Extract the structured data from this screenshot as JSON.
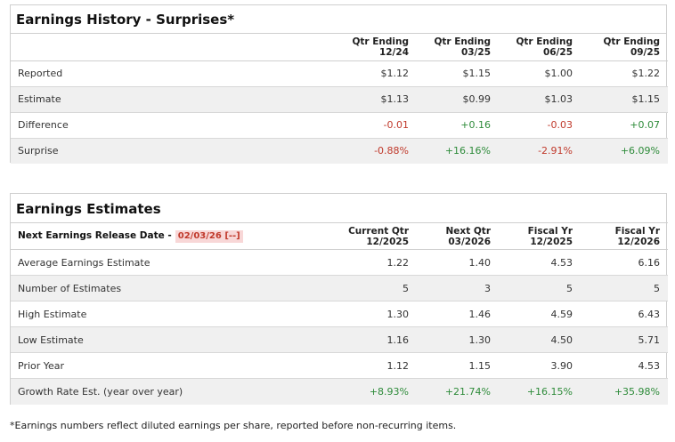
{
  "history": {
    "title": "Earnings History - Surprises*",
    "columns": [
      {
        "line1": "Qtr Ending",
        "line2": "12/24"
      },
      {
        "line1": "Qtr Ending",
        "line2": "03/25"
      },
      {
        "line1": "Qtr Ending",
        "line2": "06/25"
      },
      {
        "line1": "Qtr Ending",
        "line2": "09/25"
      }
    ],
    "rows": [
      {
        "label": "Reported",
        "values": [
          "$1.12",
          "$1.15",
          "$1.00",
          "$1.22"
        ]
      },
      {
        "label": "Estimate",
        "values": [
          "$1.13",
          "$0.99",
          "$1.03",
          "$1.15"
        ]
      },
      {
        "label": "Difference",
        "values": [
          "-0.01",
          "+0.16",
          "-0.03",
          "+0.07"
        ]
      },
      {
        "label": "Surprise",
        "values": [
          "-0.88%",
          "+16.16%",
          "-2.91%",
          "+6.09%"
        ]
      }
    ]
  },
  "estimates": {
    "title": "Earnings Estimates",
    "release_label": "Next Earnings Release Date -",
    "release_date": "02/03/26",
    "release_link": "[--]",
    "columns": [
      {
        "line1": "Current Qtr",
        "line2": "12/2025"
      },
      {
        "line1": "Next Qtr",
        "line2": "03/2026"
      },
      {
        "line1": "Fiscal Yr",
        "line2": "12/2025"
      },
      {
        "line1": "Fiscal Yr",
        "line2": "12/2026"
      }
    ],
    "rows": [
      {
        "label": "Average Earnings Estimate",
        "values": [
          "1.22",
          "1.40",
          "4.53",
          "6.16"
        ]
      },
      {
        "label": "Number of Estimates",
        "values": [
          "5",
          "3",
          "5",
          "5"
        ]
      },
      {
        "label": "High Estimate",
        "values": [
          "1.30",
          "1.46",
          "4.59",
          "6.43"
        ]
      },
      {
        "label": "Low Estimate",
        "values": [
          "1.16",
          "1.30",
          "4.50",
          "5.71"
        ]
      },
      {
        "label": "Prior Year",
        "values": [
          "1.12",
          "1.15",
          "3.90",
          "4.53"
        ]
      },
      {
        "label": "Growth Rate Est. (year over year)",
        "values": [
          "+8.93%",
          "+21.74%",
          "+16.15%",
          "+35.98%"
        ]
      }
    ]
  },
  "footnote": "*Earnings numbers reflect diluted earnings per share, reported before non-recurring items.",
  "colors": {
    "negative": "#c0392b",
    "positive": "#2e8b3a",
    "stripe": "#f0f0f0",
    "border": "#cfcfcf"
  }
}
